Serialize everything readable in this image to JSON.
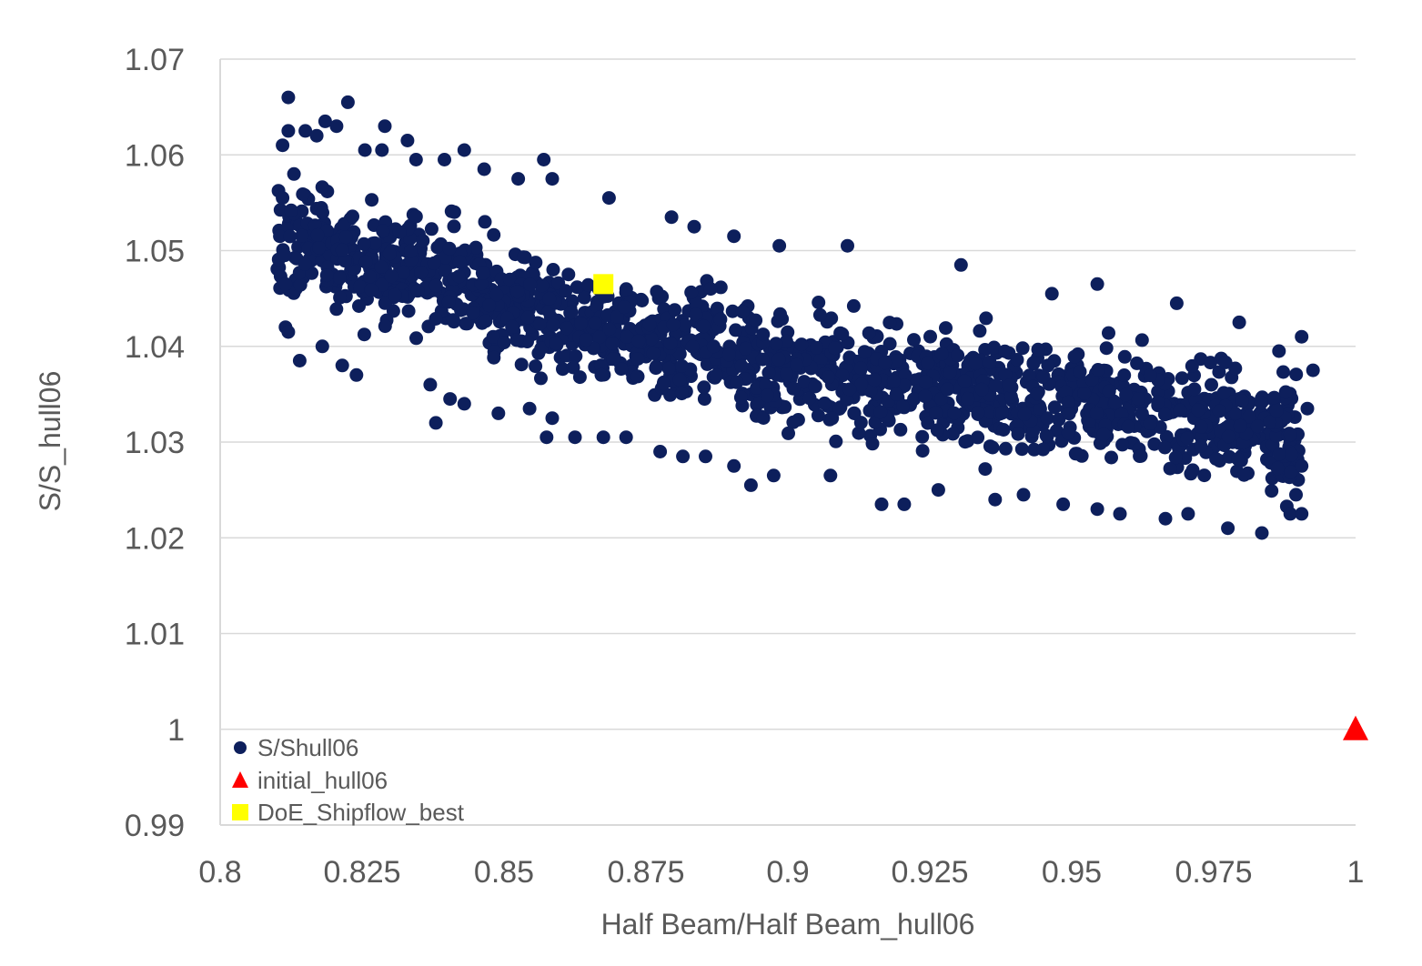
{
  "chart_data": {
    "type": "scatter",
    "title": "",
    "xlabel": "Half Beam/Half Beam_hull06",
    "ylabel": "S/S_hull06",
    "xlim": [
      0.8,
      1.0
    ],
    "ylim": [
      0.99,
      1.07
    ],
    "x_ticks": [
      "0.8",
      "0.825",
      "0.85",
      "0.875",
      "0.9",
      "0.925",
      "0.95",
      "0.975",
      "1"
    ],
    "y_ticks": [
      "0.99",
      "1",
      "1.01",
      "1.02",
      "1.03",
      "1.04",
      "1.05",
      "1.06",
      "1.07"
    ],
    "grid": "horizontal",
    "legend_position": "bottom-left",
    "legend": [
      {
        "name": "S/Shull06",
        "marker": "circle",
        "color": "#0d1f5c"
      },
      {
        "name": "initial_hull06",
        "marker": "triangle",
        "color": "#ff0000"
      },
      {
        "name": "DoE_Shipflow_best",
        "marker": "square",
        "color": "#ffff00"
      }
    ],
    "series": [
      {
        "name": "S/Shull06",
        "marker": "circle",
        "color": "#0d1f5c",
        "count": 1500,
        "x_range": [
          0.81,
          0.99
        ],
        "trend": {
          "x": [
            0.81,
            0.85,
            0.9,
            0.95,
            0.99
          ],
          "y": [
            1.052,
            1.0445,
            1.0375,
            1.034,
            1.031
          ]
        },
        "spread": 0.0075,
        "points": [
          [
            0.812,
            1.066
          ],
          [
            0.8225,
            1.0655
          ],
          [
            0.829,
            1.063
          ],
          [
            0.833,
            1.0615
          ],
          [
            0.843,
            1.0605
          ],
          [
            0.857,
            1.0595
          ],
          [
            0.812,
            1.0625
          ],
          [
            0.815,
            1.0625
          ],
          [
            0.817,
            1.062
          ],
          [
            0.8185,
            1.0635
          ],
          [
            0.8205,
            1.063
          ],
          [
            0.811,
            1.061
          ],
          [
            0.813,
            1.058
          ],
          [
            0.811,
            1.0555
          ],
          [
            0.8115,
            1.0465
          ],
          [
            0.8115,
            1.042
          ],
          [
            0.812,
            1.0415
          ],
          [
            0.814,
            1.0385
          ],
          [
            0.818,
            1.04
          ],
          [
            0.8215,
            1.038
          ],
          [
            0.824,
            1.037
          ],
          [
            0.837,
            1.036
          ],
          [
            0.838,
            1.032
          ],
          [
            0.8405,
            1.0345
          ],
          [
            0.843,
            1.034
          ],
          [
            0.849,
            1.033
          ],
          [
            0.8545,
            1.0335
          ],
          [
            0.8585,
            1.0325
          ],
          [
            0.8575,
            1.0305
          ],
          [
            0.8625,
            1.0305
          ],
          [
            0.8675,
            1.0305
          ],
          [
            0.8715,
            1.0305
          ],
          [
            0.8775,
            1.029
          ],
          [
            0.8815,
            1.0285
          ],
          [
            0.8855,
            1.0285
          ],
          [
            0.8905,
            1.0275
          ],
          [
            0.8935,
            1.0255
          ],
          [
            0.8975,
            1.0265
          ],
          [
            0.9075,
            1.0265
          ],
          [
            0.9165,
            1.0235
          ],
          [
            0.9205,
            1.0235
          ],
          [
            0.9265,
            1.025
          ],
          [
            0.9365,
            1.024
          ],
          [
            0.9415,
            1.0245
          ],
          [
            0.9485,
            1.0235
          ],
          [
            0.9545,
            1.023
          ],
          [
            0.9585,
            1.0225
          ],
          [
            0.9665,
            1.022
          ],
          [
            0.9705,
            1.0225
          ],
          [
            0.9775,
            1.021
          ],
          [
            0.9835,
            1.0205
          ],
          [
            0.9885,
            1.0225
          ],
          [
            0.9905,
            1.0225
          ],
          [
            0.9895,
            1.0245
          ],
          [
            0.9905,
            1.0275
          ],
          [
            0.9915,
            1.0335
          ],
          [
            0.9925,
            1.0375
          ],
          [
            0.9905,
            1.041
          ],
          [
            0.9865,
            1.0395
          ],
          [
            0.9795,
            1.0425
          ],
          [
            0.9685,
            1.0445
          ],
          [
            0.9545,
            1.0465
          ],
          [
            0.9465,
            1.0455
          ],
          [
            0.9305,
            1.0485
          ],
          [
            0.9105,
            1.0505
          ],
          [
            0.8985,
            1.0505
          ],
          [
            0.8905,
            1.0515
          ],
          [
            0.8835,
            1.0525
          ],
          [
            0.8795,
            1.0535
          ],
          [
            0.8685,
            1.0555
          ],
          [
            0.8585,
            1.0575
          ],
          [
            0.8525,
            1.0575
          ],
          [
            0.8465,
            1.0585
          ],
          [
            0.8395,
            1.0595
          ],
          [
            0.8345,
            1.0595
          ],
          [
            0.8285,
            1.0605
          ],
          [
            0.8255,
            1.0605
          ]
        ]
      },
      {
        "name": "initial_hull06",
        "marker": "triangle",
        "color": "#ff0000",
        "points": [
          [
            1.0,
            1.0
          ]
        ]
      },
      {
        "name": "DoE_Shipflow_best",
        "marker": "square",
        "color": "#ffff00",
        "points": [
          [
            0.8675,
            1.0465
          ]
        ]
      }
    ]
  }
}
